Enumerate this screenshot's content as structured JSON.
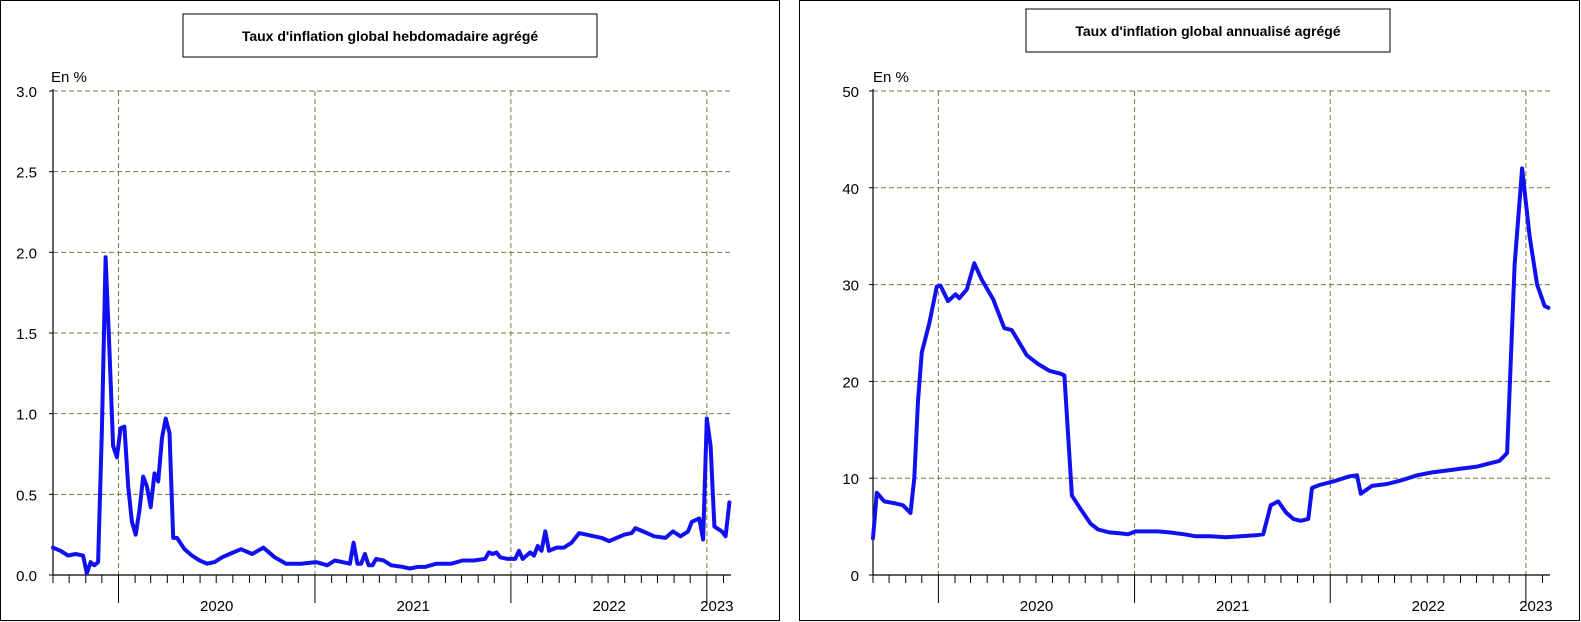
{
  "chart_data": [
    {
      "type": "line",
      "title": "Taux d'inflation global hebdomadaire agrégé",
      "ylabel": "En %",
      "xlabel": "",
      "ylim": [
        0,
        3.0
      ],
      "yticks": [
        0.0,
        0.5,
        1.0,
        1.5,
        2.0,
        2.5,
        3.0
      ],
      "ytick_labels": [
        "0.0",
        "0.5",
        "1.0",
        "1.5",
        "2.0",
        "2.5",
        "3.0"
      ],
      "xlim": [
        "2019-09-01",
        "2023-02-15"
      ],
      "year_ticks": [
        {
          "label": "2020",
          "date": "2020-01-01"
        },
        {
          "label": "2021",
          "date": "2021-01-01"
        },
        {
          "label": "2022",
          "date": "2022-01-01"
        },
        {
          "label": "2023",
          "date": "2023-01-01"
        }
      ],
      "grid": true,
      "series": [
        {
          "color": "#1010f0",
          "points": [
            [
              "2019-09-01",
              0.17
            ],
            [
              "2019-09-15",
              0.15
            ],
            [
              "2019-09-29",
              0.12
            ],
            [
              "2019-10-13",
              0.13
            ],
            [
              "2019-10-27",
              0.12
            ],
            [
              "2019-11-03",
              0.01
            ],
            [
              "2019-11-10",
              0.08
            ],
            [
              "2019-11-17",
              0.06
            ],
            [
              "2019-11-24",
              0.08
            ],
            [
              "2019-12-01",
              0.9
            ],
            [
              "2019-12-08",
              1.97
            ],
            [
              "2019-12-15",
              1.4
            ],
            [
              "2019-12-22",
              0.8
            ],
            [
              "2019-12-29",
              0.73
            ],
            [
              "2020-01-05",
              0.91
            ],
            [
              "2020-01-12",
              0.92
            ],
            [
              "2020-01-19",
              0.55
            ],
            [
              "2020-01-26",
              0.33
            ],
            [
              "2020-02-02",
              0.25
            ],
            [
              "2020-02-09",
              0.4
            ],
            [
              "2020-02-16",
              0.61
            ],
            [
              "2020-02-23",
              0.55
            ],
            [
              "2020-03-01",
              0.42
            ],
            [
              "2020-03-08",
              0.63
            ],
            [
              "2020-03-15",
              0.58
            ],
            [
              "2020-03-22",
              0.85
            ],
            [
              "2020-03-29",
              0.97
            ],
            [
              "2020-04-05",
              0.88
            ],
            [
              "2020-04-12",
              0.23
            ],
            [
              "2020-04-19",
              0.23
            ],
            [
              "2020-05-03",
              0.16
            ],
            [
              "2020-05-17",
              0.12
            ],
            [
              "2020-05-31",
              0.09
            ],
            [
              "2020-06-14",
              0.07
            ],
            [
              "2020-06-28",
              0.08
            ],
            [
              "2020-07-12",
              0.11
            ],
            [
              "2020-07-26",
              0.13
            ],
            [
              "2020-08-16",
              0.16
            ],
            [
              "2020-09-06",
              0.13
            ],
            [
              "2020-09-27",
              0.17
            ],
            [
              "2020-10-18",
              0.11
            ],
            [
              "2020-11-08",
              0.07
            ],
            [
              "2020-12-06",
              0.07
            ],
            [
              "2021-01-03",
              0.08
            ],
            [
              "2021-01-24",
              0.06
            ],
            [
              "2021-02-07",
              0.09
            ],
            [
              "2021-02-21",
              0.08
            ],
            [
              "2021-03-07",
              0.07
            ],
            [
              "2021-03-14",
              0.2
            ],
            [
              "2021-03-21",
              0.07
            ],
            [
              "2021-03-28",
              0.07
            ],
            [
              "2021-04-04",
              0.13
            ],
            [
              "2021-04-11",
              0.06
            ],
            [
              "2021-04-18",
              0.06
            ],
            [
              "2021-04-25",
              0.1
            ],
            [
              "2021-05-09",
              0.09
            ],
            [
              "2021-05-23",
              0.06
            ],
            [
              "2021-06-13",
              0.05
            ],
            [
              "2021-06-27",
              0.04
            ],
            [
              "2021-07-11",
              0.05
            ],
            [
              "2021-07-25",
              0.05
            ],
            [
              "2021-08-15",
              0.07
            ],
            [
              "2021-09-12",
              0.07
            ],
            [
              "2021-10-03",
              0.09
            ],
            [
              "2021-10-24",
              0.09
            ],
            [
              "2021-11-14",
              0.1
            ],
            [
              "2021-11-21",
              0.14
            ],
            [
              "2021-11-28",
              0.13
            ],
            [
              "2021-12-05",
              0.14
            ],
            [
              "2021-12-12",
              0.11
            ],
            [
              "2021-12-26",
              0.1
            ],
            [
              "2022-01-09",
              0.1
            ],
            [
              "2022-01-16",
              0.15
            ],
            [
              "2022-01-23",
              0.1
            ],
            [
              "2022-01-30",
              0.12
            ],
            [
              "2022-02-06",
              0.14
            ],
            [
              "2022-02-13",
              0.12
            ],
            [
              "2022-02-20",
              0.18
            ],
            [
              "2022-02-27",
              0.15
            ],
            [
              "2022-03-06",
              0.27
            ],
            [
              "2022-03-13",
              0.15
            ],
            [
              "2022-03-27",
              0.17
            ],
            [
              "2022-04-10",
              0.17
            ],
            [
              "2022-04-24",
              0.2
            ],
            [
              "2022-05-08",
              0.26
            ],
            [
              "2022-05-22",
              0.25
            ],
            [
              "2022-06-05",
              0.24
            ],
            [
              "2022-06-19",
              0.23
            ],
            [
              "2022-07-03",
              0.21
            ],
            [
              "2022-07-17",
              0.23
            ],
            [
              "2022-07-31",
              0.25
            ],
            [
              "2022-08-14",
              0.26
            ],
            [
              "2022-08-21",
              0.29
            ],
            [
              "2022-09-04",
              0.27
            ],
            [
              "2022-09-25",
              0.24
            ],
            [
              "2022-10-16",
              0.23
            ],
            [
              "2022-10-30",
              0.27
            ],
            [
              "2022-11-13",
              0.24
            ],
            [
              "2022-11-27",
              0.27
            ],
            [
              "2022-12-04",
              0.33
            ],
            [
              "2022-12-18",
              0.35
            ],
            [
              "2022-12-25",
              0.22
            ],
            [
              "2023-01-01",
              0.97
            ],
            [
              "2023-01-08",
              0.8
            ],
            [
              "2023-01-15",
              0.3
            ],
            [
              "2023-01-29",
              0.27
            ],
            [
              "2023-02-05",
              0.24
            ],
            [
              "2023-02-12",
              0.45
            ]
          ]
        }
      ]
    },
    {
      "type": "line",
      "title": "Taux d'inflation global annualisé agrégé",
      "ylabel": "En %",
      "xlabel": "",
      "ylim": [
        0,
        50
      ],
      "yticks": [
        0,
        10,
        20,
        30,
        40,
        50
      ],
      "ytick_labels": [
        "0",
        "10",
        "20",
        "30",
        "40",
        "50"
      ],
      "xlim": [
        "2019-09-01",
        "2023-02-15"
      ],
      "year_ticks": [
        {
          "label": "2020",
          "date": "2020-01-01"
        },
        {
          "label": "2021",
          "date": "2021-01-01"
        },
        {
          "label": "2022",
          "date": "2022-01-01"
        },
        {
          "label": "2023",
          "date": "2023-01-01"
        }
      ],
      "grid": true,
      "series": [
        {
          "color": "#1010f0",
          "points": [
            [
              "2019-09-01",
              3.8
            ],
            [
              "2019-09-08",
              8.5
            ],
            [
              "2019-09-22",
              7.6
            ],
            [
              "2019-10-13",
              7.4
            ],
            [
              "2019-10-27",
              7.2
            ],
            [
              "2019-11-10",
              6.4
            ],
            [
              "2019-11-17",
              10
            ],
            [
              "2019-11-24",
              18
            ],
            [
              "2019-12-01",
              23
            ],
            [
              "2019-12-15",
              26
            ],
            [
              "2019-12-29",
              29.8
            ],
            [
              "2020-01-05",
              29.9
            ],
            [
              "2020-01-19",
              28.3
            ],
            [
              "2020-02-02",
              29
            ],
            [
              "2020-02-09",
              28.6
            ],
            [
              "2020-02-23",
              29.5
            ],
            [
              "2020-03-08",
              32.2
            ],
            [
              "2020-03-22",
              30.5
            ],
            [
              "2020-04-12",
              28.5
            ],
            [
              "2020-05-03",
              25.5
            ],
            [
              "2020-05-17",
              25.3
            ],
            [
              "2020-05-31",
              24
            ],
            [
              "2020-06-14",
              22.7
            ],
            [
              "2020-07-05",
              21.8
            ],
            [
              "2020-07-26",
              21.1
            ],
            [
              "2020-08-16",
              20.8
            ],
            [
              "2020-08-23",
              20.6
            ],
            [
              "2020-09-06",
              8.2
            ],
            [
              "2020-09-20",
              7
            ],
            [
              "2020-10-11",
              5.3
            ],
            [
              "2020-10-25",
              4.7
            ],
            [
              "2020-11-15",
              4.4
            ],
            [
              "2020-12-06",
              4.3
            ],
            [
              "2020-12-20",
              4.2
            ],
            [
              "2021-01-03",
              4.5
            ],
            [
              "2021-01-24",
              4.5
            ],
            [
              "2021-02-14",
              4.5
            ],
            [
              "2021-03-07",
              4.4
            ],
            [
              "2021-04-04",
              4.2
            ],
            [
              "2021-04-25",
              4
            ],
            [
              "2021-05-23",
              4
            ],
            [
              "2021-06-20",
              3.9
            ],
            [
              "2021-07-18",
              4
            ],
            [
              "2021-08-15",
              4.1
            ],
            [
              "2021-08-29",
              4.2
            ],
            [
              "2021-09-12",
              7.2
            ],
            [
              "2021-09-26",
              7.6
            ],
            [
              "2021-10-10",
              6.5
            ],
            [
              "2021-10-24",
              5.8
            ],
            [
              "2021-11-07",
              5.6
            ],
            [
              "2021-11-21",
              5.8
            ],
            [
              "2021-11-28",
              9.0
            ],
            [
              "2021-12-12",
              9.3
            ],
            [
              "2022-01-09",
              9.7
            ],
            [
              "2022-02-06",
              10.2
            ],
            [
              "2022-02-20",
              10.3
            ],
            [
              "2022-02-27",
              8.4
            ],
            [
              "2022-03-20",
              9.2
            ],
            [
              "2022-04-17",
              9.4
            ],
            [
              "2022-05-15",
              9.8
            ],
            [
              "2022-06-12",
              10.3
            ],
            [
              "2022-07-10",
              10.6
            ],
            [
              "2022-08-07",
              10.8
            ],
            [
              "2022-09-04",
              11
            ],
            [
              "2022-10-02",
              11.2
            ],
            [
              "2022-10-23",
              11.5
            ],
            [
              "2022-11-13",
              11.8
            ],
            [
              "2022-11-27",
              12.6
            ],
            [
              "2022-12-11",
              32
            ],
            [
              "2022-12-25",
              42
            ],
            [
              "2023-01-08",
              35
            ],
            [
              "2023-01-22",
              30
            ],
            [
              "2023-02-05",
              27.8
            ],
            [
              "2023-02-12",
              27.6
            ]
          ]
        }
      ]
    }
  ]
}
